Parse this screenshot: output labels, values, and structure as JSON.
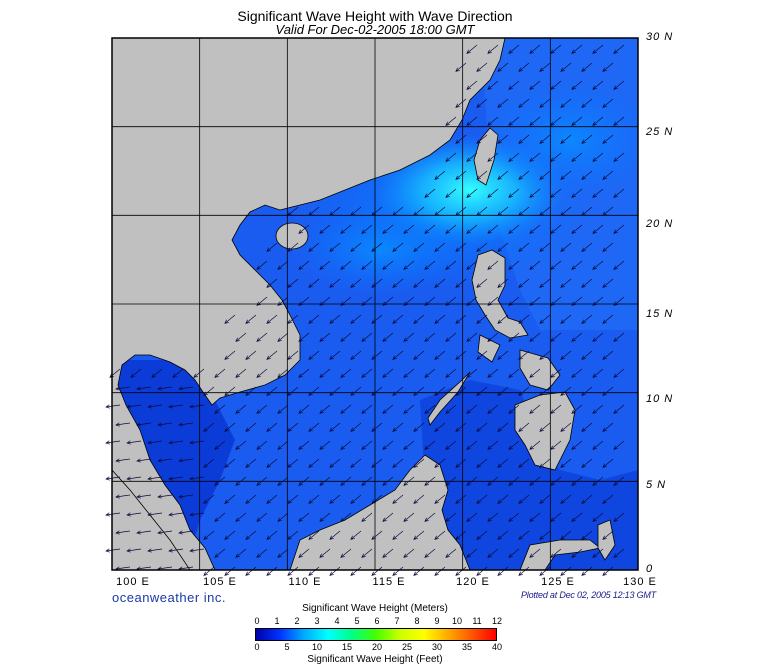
{
  "title": "Significant Wave Height with Wave Direction",
  "subtitle": "Valid For Dec-02-2005 18:00 GMT",
  "latitude_labels": [
    "30 N",
    "25 N",
    "20 N",
    "15 N",
    "10 N",
    "5 N",
    "0"
  ],
  "longitude_labels": [
    "100 E",
    "105 E",
    "110 E",
    "115 E",
    "120 E",
    "125 E",
    "130 E"
  ],
  "map": {
    "lon_range": [
      100,
      130
    ],
    "lat_range": [
      0,
      30
    ],
    "grid_step_degrees": 5,
    "land_color": "#c0c0c0",
    "coast_color": "#000000",
    "arrow_direction": "toward south-west (wind from north-east)"
  },
  "branding": "oceanweather inc.",
  "plotted_text": "Plotted at Dec 02, 2005 12:13 GMT",
  "legend": {
    "title_meters": "Significant Wave Height (Meters)",
    "title_feet": "Significant Wave Height (Feet)",
    "meter_ticks": [
      "0",
      "1",
      "2",
      "3",
      "4",
      "5",
      "6",
      "7",
      "8",
      "9",
      "10",
      "11",
      "12"
    ],
    "feet_ticks": [
      "0",
      "5",
      "10",
      "15",
      "20",
      "25",
      "30",
      "35",
      "40"
    ],
    "colors": [
      "#0000aa",
      "#0033ff",
      "#00aaff",
      "#00ffff",
      "#00ff88",
      "#44ff00",
      "#ccff00",
      "#ffff00",
      "#ffaa00",
      "#ff5500",
      "#ff0000"
    ]
  }
}
